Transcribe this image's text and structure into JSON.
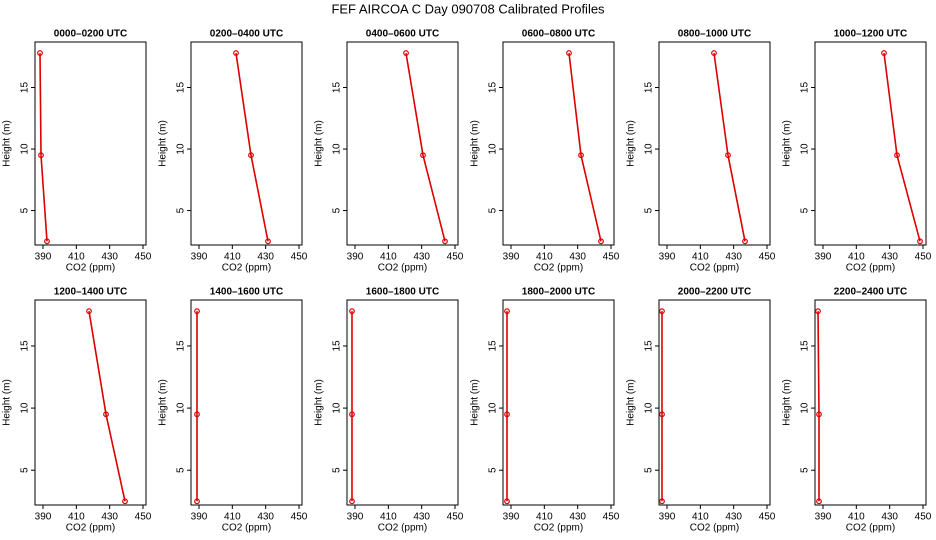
{
  "title": "FEF AIRCOA C  Day 090708  Calibrated Profiles",
  "chart_data": [
    {
      "type": "line",
      "title": "0000–0200 UTC",
      "xlabel": "CO2 (ppm)",
      "ylabel": "Height (m)",
      "color": "#dd0000",
      "x": [
        388.2,
        388.8,
        392.4
      ],
      "values": [
        17.8,
        9.5,
        2.5
      ],
      "xlim": [
        385.2,
        451.8
      ],
      "ylim": [
        2.2,
        18.7
      ],
      "xticks": [
        390,
        410,
        430,
        450
      ],
      "yticks": [
        5,
        10,
        15
      ]
    },
    {
      "type": "line",
      "title": "0200–0400 UTC",
      "xlabel": "CO2 (ppm)",
      "ylabel": "Height (m)",
      "color": "#dd0000",
      "x": [
        412.2,
        421.2,
        431.4
      ],
      "values": [
        17.8,
        9.5,
        2.5
      ],
      "xlim": [
        385.2,
        451.8
      ],
      "ylim": [
        2.2,
        18.7
      ],
      "xticks": [
        390,
        410,
        430,
        450
      ],
      "yticks": [
        5,
        10,
        15
      ]
    },
    {
      "type": "line",
      "title": "0400–0600 UTC",
      "xlabel": "CO2 (ppm)",
      "ylabel": "Height (m)",
      "color": "#dd0000",
      "x": [
        420.6,
        430.8,
        444.0
      ],
      "values": [
        17.8,
        9.5,
        2.5
      ],
      "xlim": [
        385.2,
        451.8
      ],
      "ylim": [
        2.2,
        18.7
      ],
      "xticks": [
        390,
        410,
        430,
        450
      ],
      "yticks": [
        5,
        10,
        15
      ]
    },
    {
      "type": "line",
      "title": "0600–0800 UTC",
      "xlabel": "CO2 (ppm)",
      "ylabel": "Height (m)",
      "color": "#dd0000",
      "x": [
        424.8,
        432.0,
        444.0
      ],
      "values": [
        17.8,
        9.5,
        2.5
      ],
      "xlim": [
        385.2,
        451.8
      ],
      "ylim": [
        2.2,
        18.7
      ],
      "xticks": [
        390,
        410,
        430,
        450
      ],
      "yticks": [
        5,
        10,
        15
      ]
    },
    {
      "type": "line",
      "title": "0800–1000 UTC",
      "xlabel": "CO2 (ppm)",
      "ylabel": "Height (m)",
      "color": "#dd0000",
      "x": [
        418.2,
        426.6,
        436.8
      ],
      "values": [
        17.8,
        9.5,
        2.5
      ],
      "xlim": [
        385.2,
        451.8
      ],
      "ylim": [
        2.2,
        18.7
      ],
      "xticks": [
        390,
        410,
        430,
        450
      ],
      "yticks": [
        5,
        10,
        15
      ]
    },
    {
      "type": "line",
      "title": "1000–1200 UTC",
      "xlabel": "CO2 (ppm)",
      "ylabel": "Height (m)",
      "color": "#dd0000",
      "x": [
        426.6,
        434.4,
        448.2
      ],
      "values": [
        17.8,
        9.5,
        2.5
      ],
      "xlim": [
        385.2,
        451.8
      ],
      "ylim": [
        2.2,
        18.7
      ],
      "xticks": [
        390,
        410,
        430,
        450
      ],
      "yticks": [
        5,
        10,
        15
      ]
    },
    {
      "type": "line",
      "title": "1200–1400 UTC",
      "xlabel": "CO2 (ppm)",
      "ylabel": "Height (m)",
      "color": "#dd0000",
      "x": [
        417.6,
        427.8,
        439.2
      ],
      "values": [
        17.8,
        9.5,
        2.5
      ],
      "xlim": [
        385.2,
        451.8
      ],
      "ylim": [
        2.2,
        18.7
      ],
      "xticks": [
        390,
        410,
        430,
        450
      ],
      "yticks": [
        5,
        10,
        15
      ]
    },
    {
      "type": "line",
      "title": "1400–1600 UTC",
      "xlabel": "CO2 (ppm)",
      "ylabel": "Height (m)",
      "color": "#dd0000",
      "x": [
        388.8,
        388.8,
        388.8
      ],
      "values": [
        17.8,
        9.5,
        2.5
      ],
      "xlim": [
        385.2,
        451.8
      ],
      "ylim": [
        2.2,
        18.7
      ],
      "xticks": [
        390,
        410,
        430,
        450
      ],
      "yticks": [
        5,
        10,
        15
      ]
    },
    {
      "type": "line",
      "title": "1600–1800 UTC",
      "xlabel": "CO2 (ppm)",
      "ylabel": "Height (m)",
      "color": "#dd0000",
      "x": [
        388.2,
        388.2,
        388.2
      ],
      "values": [
        17.8,
        9.5,
        2.5
      ],
      "xlim": [
        385.2,
        451.8
      ],
      "ylim": [
        2.2,
        18.7
      ],
      "xticks": [
        390,
        410,
        430,
        450
      ],
      "yticks": [
        5,
        10,
        15
      ]
    },
    {
      "type": "line",
      "title": "1800–2000 UTC",
      "xlabel": "CO2 (ppm)",
      "ylabel": "Height (m)",
      "color": "#dd0000",
      "x": [
        387.6,
        387.6,
        387.6
      ],
      "values": [
        17.8,
        9.5,
        2.5
      ],
      "xlim": [
        385.2,
        451.8
      ],
      "ylim": [
        2.2,
        18.7
      ],
      "xticks": [
        390,
        410,
        430,
        450
      ],
      "yticks": [
        5,
        10,
        15
      ]
    },
    {
      "type": "line",
      "title": "2000–2200 UTC",
      "xlabel": "CO2 (ppm)",
      "ylabel": "Height (m)",
      "color": "#dd0000",
      "x": [
        387.0,
        387.0,
        387.0
      ],
      "values": [
        17.8,
        9.5,
        2.5
      ],
      "xlim": [
        385.2,
        451.8
      ],
      "ylim": [
        2.2,
        18.7
      ],
      "xticks": [
        390,
        410,
        430,
        450
      ],
      "yticks": [
        5,
        10,
        15
      ]
    },
    {
      "type": "line",
      "title": "2200–2400 UTC",
      "xlabel": "CO2 (ppm)",
      "ylabel": "Height (m)",
      "color": "#dd0000",
      "x": [
        387.0,
        387.6,
        387.6
      ],
      "values": [
        17.8,
        9.5,
        2.5
      ],
      "xlim": [
        385.2,
        451.8
      ],
      "ylim": [
        2.2,
        18.7
      ],
      "xticks": [
        390,
        410,
        430,
        450
      ],
      "yticks": [
        5,
        10,
        15
      ]
    }
  ]
}
